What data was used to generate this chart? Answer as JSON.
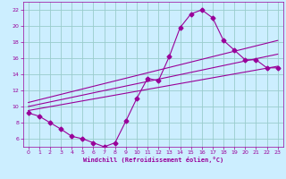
{
  "bg_color": "#cceeff",
  "line_color": "#990099",
  "grid_color": "#99cccc",
  "xlabel": "Windchill (Refroidissement éolien,°C)",
  "xlabel_color": "#990099",
  "tick_color": "#990099",
  "xlim": [
    -0.5,
    23.5
  ],
  "ylim": [
    5.0,
    23.0
  ],
  "yticks": [
    6,
    8,
    10,
    12,
    14,
    16,
    18,
    20,
    22
  ],
  "xticks": [
    0,
    1,
    2,
    3,
    4,
    5,
    6,
    7,
    8,
    9,
    10,
    11,
    12,
    13,
    14,
    15,
    16,
    17,
    18,
    19,
    20,
    21,
    22,
    23
  ],
  "curve1_x": [
    0,
    1,
    2,
    3,
    4,
    5,
    6,
    7,
    8,
    9,
    10,
    11,
    12,
    13,
    14,
    15,
    16,
    17,
    18,
    19,
    20,
    21,
    22,
    23
  ],
  "curve1_y": [
    9.2,
    8.8,
    8.0,
    7.2,
    6.3,
    6.0,
    5.5,
    5.0,
    5.5,
    8.2,
    11.0,
    13.5,
    13.2,
    16.2,
    19.8,
    21.5,
    22.0,
    21.0,
    18.2,
    17.0,
    15.8,
    15.8,
    14.8,
    14.8
  ],
  "curve2_x": [
    0,
    23
  ],
  "curve2_y": [
    9.5,
    15.0
  ],
  "curve3_x": [
    0,
    23
  ],
  "curve3_y": [
    10.0,
    16.5
  ],
  "curve4_x": [
    0,
    23
  ],
  "curve4_y": [
    10.5,
    18.2
  ]
}
